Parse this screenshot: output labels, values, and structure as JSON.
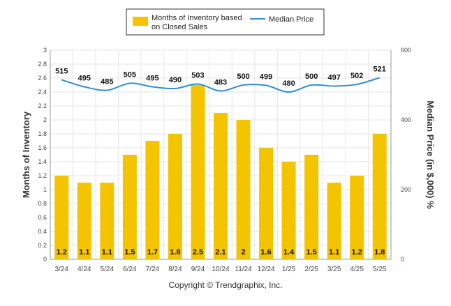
{
  "chart_data": {
    "type": "bar+line",
    "categories": [
      "3/24",
      "4/24",
      "5/24",
      "6/24",
      "7/24",
      "8/24",
      "9/24",
      "10/24",
      "11/24",
      "12/24",
      "1/25",
      "2/25",
      "3/25",
      "4/25",
      "5/25"
    ],
    "series": [
      {
        "name": "Months of Inventory based on Closed Sales",
        "kind": "bar",
        "axis": "left",
        "color": "#F5C400",
        "values": [
          1.2,
          1.1,
          1.1,
          1.5,
          1.7,
          1.8,
          2.5,
          2.1,
          2,
          1.6,
          1.4,
          1.5,
          1.1,
          1.2,
          1.8
        ],
        "labels": [
          "1.2",
          "1.1",
          "1.1",
          "1.5",
          "1.7",
          "1.8",
          "2.5",
          "2.1",
          "2",
          "1.6",
          "1.4",
          "1.5",
          "1.1",
          "1.2",
          "1.8"
        ]
      },
      {
        "name": "Median Price",
        "kind": "line",
        "axis": "right",
        "color": "#2F8FD8",
        "values": [
          515,
          495,
          485,
          505,
          495,
          490,
          503,
          483,
          500,
          499,
          480,
          500,
          497,
          502,
          521
        ],
        "labels": [
          "515",
          "495",
          "485",
          "505",
          "495",
          "490",
          "503",
          "483",
          "500",
          "499",
          "480",
          "500",
          "497",
          "502",
          "521"
        ]
      }
    ],
    "y_left": {
      "label": "Months of Inventory",
      "range": [
        0,
        3
      ],
      "ticks": [
        "0",
        "0.2",
        "0.4",
        "0.6",
        "0.8",
        "1",
        "1.2",
        "1.4",
        "1.6",
        "1.8",
        "2",
        "2.2",
        "2.4",
        "2.6",
        "2.8",
        "3"
      ]
    },
    "y_right": {
      "label": "Median Price (in $,000) %",
      "range": [
        0,
        600
      ],
      "ticks": [
        "0",
        "200",
        "400",
        "600"
      ]
    },
    "legend": {
      "position": "top-center",
      "bar_label_line1": "Months of Inventory based",
      "bar_label_line2": "on Closed Sales",
      "line_label": "Median Price"
    },
    "grid": true,
    "footer": "Copyright © Trendgraphix, Inc."
  }
}
